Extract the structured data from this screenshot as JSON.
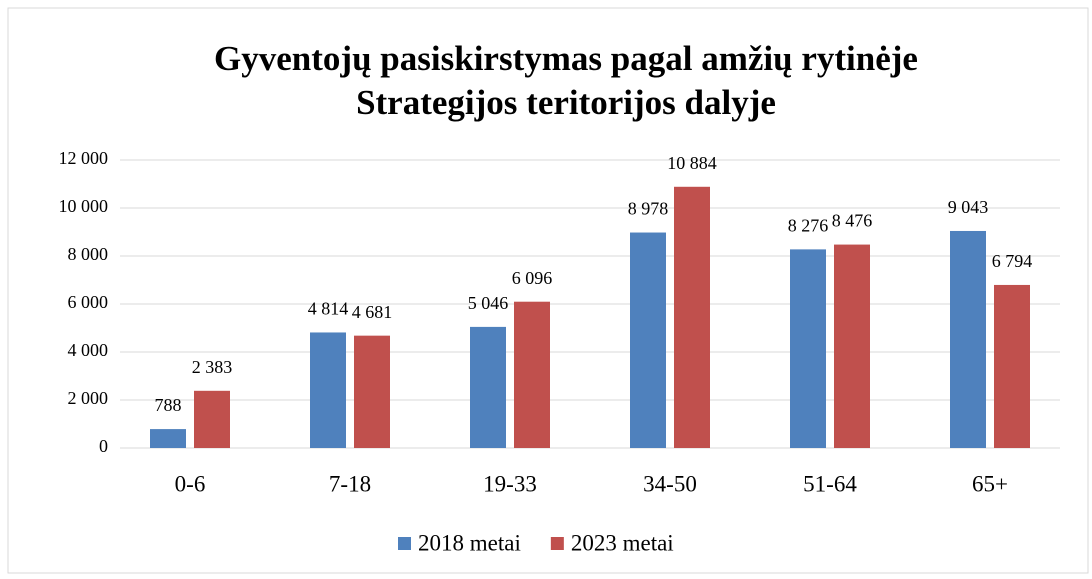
{
  "chart_data": {
    "type": "bar",
    "title": [
      "Gyventojų pasiskirstymas  pagal amžių rytinėje",
      "Strategijos teritorijos dalyje"
    ],
    "categories": [
      "0-6",
      "7-18",
      "19-33",
      "34-50",
      "51-64",
      "65+"
    ],
    "series": [
      {
        "name": "2018 metai",
        "color": "#4f81bd",
        "values": [
          788,
          4814,
          5046,
          8978,
          8276,
          9043
        ],
        "value_labels": [
          "788",
          "4 814",
          "5 046",
          "8 978",
          "8 276",
          "9 043"
        ]
      },
      {
        "name": "2023 metai",
        "color": "#c0504d",
        "values": [
          2383,
          4681,
          6096,
          10884,
          8476,
          6794
        ],
        "value_labels": [
          "2 383",
          "4 681",
          "6 096",
          "10 884",
          "8 476",
          "6 794"
        ]
      }
    ],
    "ylim": [
      0,
      12000
    ],
    "yticks": [
      0,
      {
        "value": 2000,
        "label": "2 000"
      },
      {
        "value": 4000,
        "label": "4 000"
      },
      {
        "value": 6000,
        "label": "6 000"
      },
      {
        "value": 8000,
        "label": "8 000"
      },
      {
        "value": 10000,
        "label": "10 000"
      },
      {
        "value": 12000,
        "label": "12 000"
      }
    ],
    "grid": true,
    "legend": "bottom"
  }
}
